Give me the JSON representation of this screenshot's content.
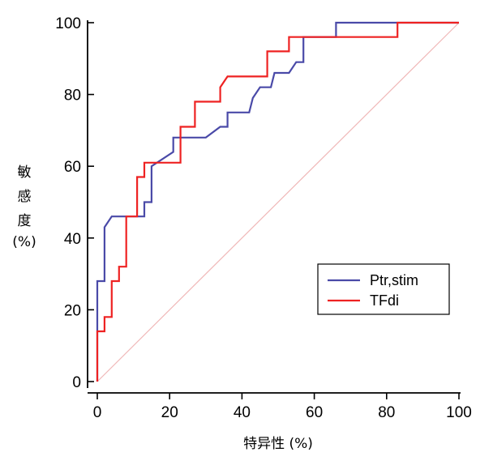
{
  "chart_data": {
    "type": "line",
    "title": "",
    "xlabel": "特异性 (%)",
    "ylabel_lines": [
      "敏",
      "感",
      "度",
      "(%)"
    ],
    "xlim": [
      0,
      100
    ],
    "ylim": [
      0,
      100
    ],
    "x_ticks": [
      "0",
      "20",
      "40",
      "60",
      "80",
      "100"
    ],
    "y_ticks": [
      "0",
      "20",
      "40",
      "60",
      "80",
      "100"
    ],
    "grid": false,
    "legend_position": "bottom-right",
    "reference_line": {
      "color": "#f0b8b8",
      "points": [
        [
          0,
          0
        ],
        [
          100,
          100
        ]
      ]
    },
    "series": [
      {
        "name": "Ptr,stim",
        "color": "#4a4aa8",
        "points": [
          [
            0,
            0
          ],
          [
            0,
            28
          ],
          [
            2,
            28
          ],
          [
            2,
            43
          ],
          [
            4,
            46
          ],
          [
            13,
            46
          ],
          [
            13,
            50
          ],
          [
            15,
            50
          ],
          [
            15,
            60
          ],
          [
            21,
            64
          ],
          [
            21,
            68
          ],
          [
            30,
            68
          ],
          [
            34,
            71
          ],
          [
            36,
            71
          ],
          [
            36,
            75
          ],
          [
            42,
            75
          ],
          [
            43,
            79
          ],
          [
            45,
            82
          ],
          [
            48,
            82
          ],
          [
            49,
            86
          ],
          [
            53,
            86
          ],
          [
            55,
            89
          ],
          [
            57,
            89
          ],
          [
            57,
            96
          ],
          [
            66,
            96
          ],
          [
            66,
            100
          ],
          [
            100,
            100
          ]
        ]
      },
      {
        "name": "TFdi",
        "color": "#ee2222",
        "points": [
          [
            0,
            0
          ],
          [
            0,
            14
          ],
          [
            2,
            14
          ],
          [
            2,
            18
          ],
          [
            4,
            18
          ],
          [
            4,
            28
          ],
          [
            6,
            28
          ],
          [
            6,
            32
          ],
          [
            8,
            32
          ],
          [
            8,
            46
          ],
          [
            11,
            46
          ],
          [
            11,
            57
          ],
          [
            13,
            57
          ],
          [
            13,
            61
          ],
          [
            23,
            61
          ],
          [
            23,
            71
          ],
          [
            27,
            71
          ],
          [
            27,
            78
          ],
          [
            34,
            78
          ],
          [
            34,
            82
          ],
          [
            36,
            85
          ],
          [
            47,
            85
          ],
          [
            47,
            92
          ],
          [
            53,
            92
          ],
          [
            53,
            96
          ],
          [
            83,
            96
          ],
          [
            83,
            100
          ],
          [
            100,
            100
          ]
        ]
      }
    ]
  }
}
